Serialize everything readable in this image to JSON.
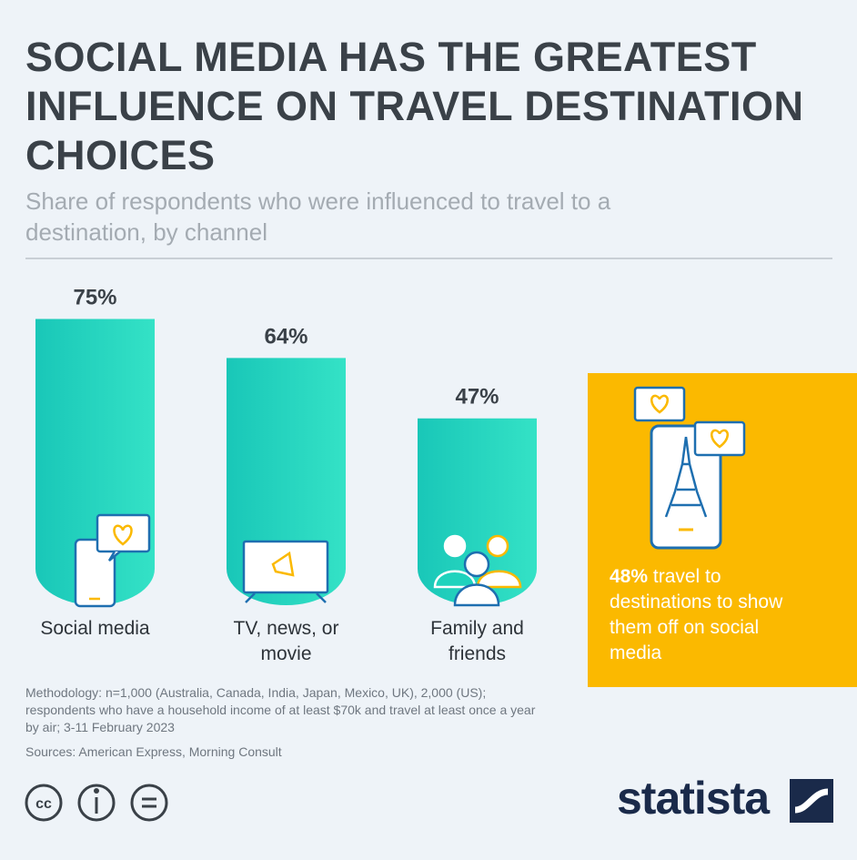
{
  "chart_data": {
    "type": "bar",
    "title": "SOCIAL MEDIA HAS THE GREATEST INFLUENCE ON TRAVEL DESTINATION CHOICES",
    "subtitle": "Share of respondents who were influenced to travel to a destination, by channel",
    "categories": [
      "Social media",
      "TV, news, or movie",
      "Family and friends"
    ],
    "values": [
      75,
      64,
      47
    ],
    "value_labels": [
      "75%",
      "64%",
      "47%"
    ],
    "color": "#1fd3bd",
    "callout": {
      "highlight": "48%",
      "text": "travel to destinations to show them off on social media"
    },
    "methodology": "Methodology: n=1,000 (Australia, Canada, India, Japan, Mexico, UK), 2,000 (US); respondents who have a household income of at least $70k and travel at least once a year by air; 3-11 February 2023",
    "sources": "Sources: American Express, Morning Consult",
    "brand": "statista"
  }
}
